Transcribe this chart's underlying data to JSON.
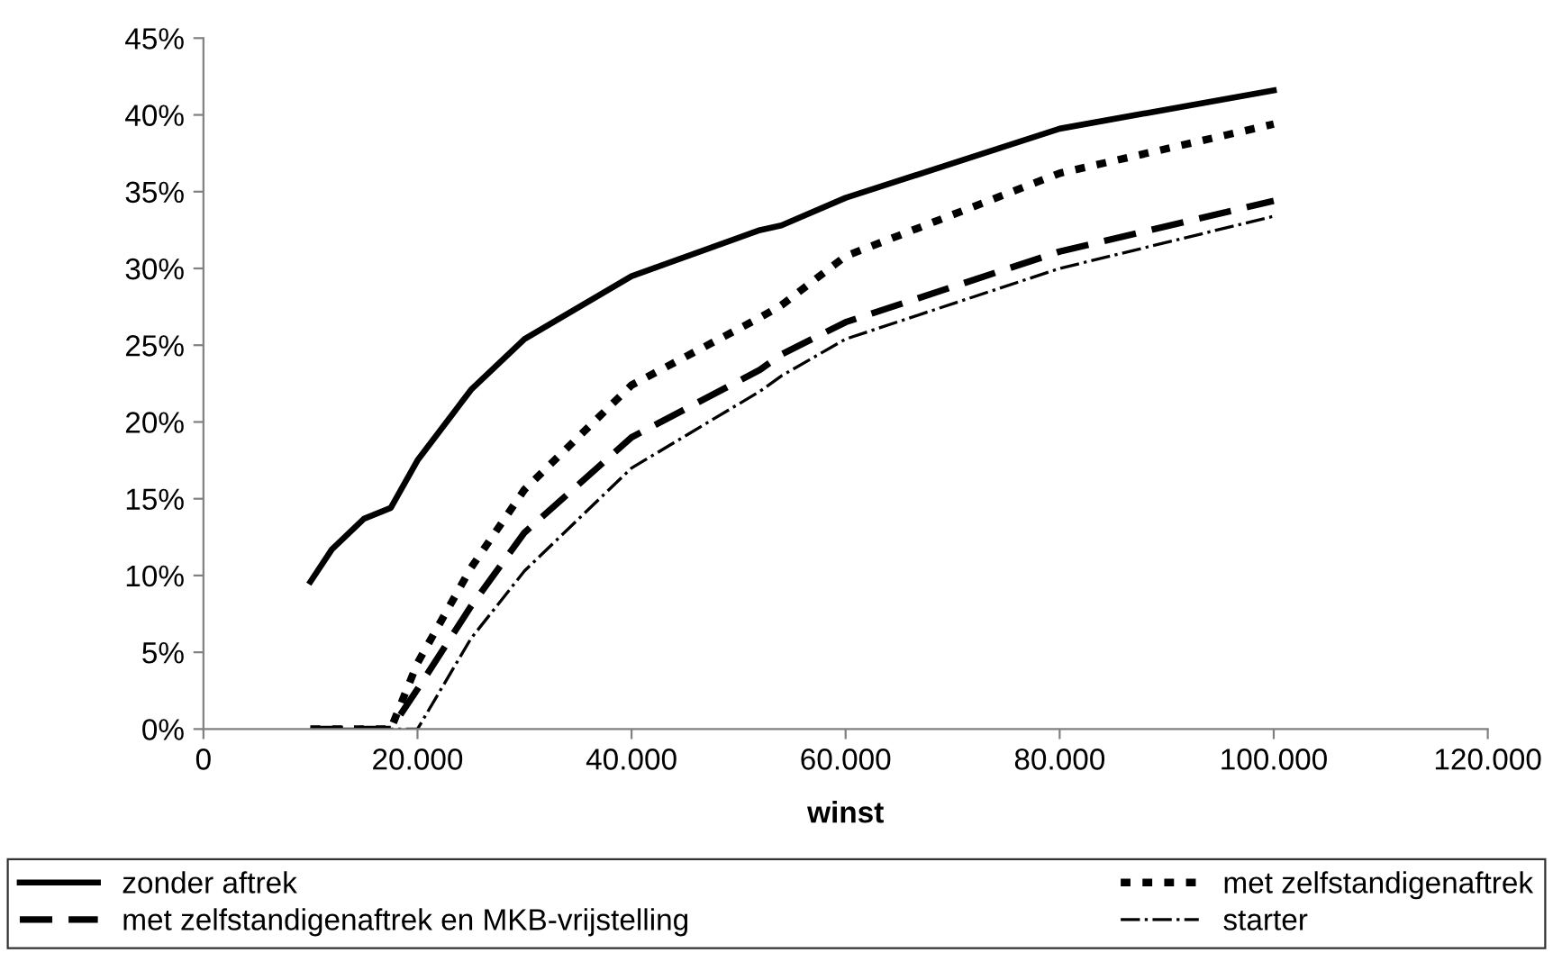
{
  "chart_data": {
    "type": "line",
    "xlabel": "winst",
    "x": [
      10000,
      12000,
      15000,
      17500,
      20000,
      25000,
      30000,
      40000,
      52000,
      54000,
      60000,
      80000,
      100000
    ],
    "series": [
      {
        "name": "zonder aftrek",
        "color": "#000000",
        "line_style": "solid",
        "values": [
          9.6,
          11.7,
          13.7,
          14.4,
          17.5,
          22.1,
          25.4,
          29.5,
          32.5,
          32.8,
          34.6,
          39.1,
          41.6
        ]
      },
      {
        "name": "met zelfstandigenaftrek",
        "color": "#000000",
        "line_style": "dotted",
        "values": [
          0,
          0,
          0,
          0,
          4.3,
          10.5,
          15.6,
          22.4,
          26.8,
          27.6,
          30.8,
          36.2,
          39.4
        ]
      },
      {
        "name": "met zelfstandigenaftrek en MKB-vrijstelling",
        "color": "#000000",
        "line_style": "dashed",
        "values": [
          0,
          0,
          0,
          0,
          2.6,
          8.0,
          12.8,
          19.0,
          23.4,
          24.4,
          26.5,
          31.1,
          34.4
        ]
      },
      {
        "name": "starter",
        "color": "#000000",
        "line_style": "dashdot",
        "values": [
          0,
          0,
          0,
          0,
          0,
          5.9,
          10.3,
          17.0,
          22.0,
          23.0,
          25.4,
          30.0,
          33.4
        ]
      }
    ],
    "xlim": [
      0,
      120000
    ],
    "xticks": [
      0,
      {
        "value": 20000,
        "label": "20.000"
      },
      {
        "value": 40000,
        "label": "40.000"
      },
      {
        "value": 60000,
        "label": "60.000"
      },
      {
        "value": 80000,
        "label": "80.000"
      },
      {
        "value": 100000,
        "label": "100.000"
      },
      {
        "value": 120000,
        "label": "120.000"
      }
    ],
    "ylim": [
      0,
      45
    ],
    "yticks": [
      {
        "value": 0,
        "label": "0%"
      },
      {
        "value": 5,
        "label": "5%"
      },
      {
        "value": 10,
        "label": "10%"
      },
      {
        "value": 15,
        "label": "15%"
      },
      {
        "value": 20,
        "label": "20%"
      },
      {
        "value": 25,
        "label": "25%"
      },
      {
        "value": 30,
        "label": "30%"
      },
      {
        "value": 35,
        "label": "35%"
      },
      {
        "value": 40,
        "label": "40%"
      },
      {
        "value": 45,
        "label": "45%"
      }
    ],
    "grid": false,
    "legend": "bottom",
    "marker": "none"
  }
}
